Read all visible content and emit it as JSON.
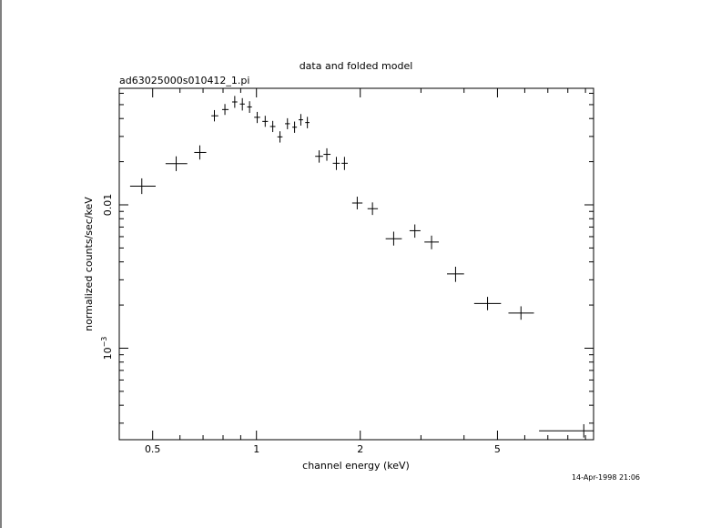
{
  "chart_data": {
    "type": "scatter",
    "title": "data and folded model",
    "subtitle": "ad63025000s010412_1.pi",
    "xlabel": "channel energy (keV)",
    "ylabel": "normalized counts/sec/keV",
    "timestamp": "14-Apr-1998 21:06",
    "x_scale": "log",
    "y_scale": "log",
    "xlim": [
      0.4,
      9.5
    ],
    "ylim": [
      0.00023,
      0.065
    ],
    "x_ticks": [
      {
        "value": 0.5,
        "label": "0.5"
      },
      {
        "value": 1,
        "label": "1"
      },
      {
        "value": 2,
        "label": "2"
      },
      {
        "value": 5,
        "label": "5"
      }
    ],
    "y_ticks": [
      {
        "value": 0.01,
        "label": "0.01"
      },
      {
        "value": 0.001,
        "label": "10",
        "exponent": "−3"
      }
    ],
    "grid": false,
    "series": [
      {
        "marker": "crosshair",
        "points": [
          {
            "x": 0.465,
            "xlo": 0.43,
            "xhi": 0.51,
            "y": 0.0135,
            "ylo": 0.0119,
            "yhi": 0.0153
          },
          {
            "x": 0.585,
            "xlo": 0.545,
            "xhi": 0.63,
            "y": 0.0194,
            "ylo": 0.0172,
            "yhi": 0.0218
          },
          {
            "x": 0.685,
            "xlo": 0.66,
            "xhi": 0.715,
            "y": 0.0232,
            "ylo": 0.0207,
            "yhi": 0.026
          },
          {
            "x": 0.755,
            "xlo": 0.74,
            "xhi": 0.775,
            "y": 0.0418,
            "ylo": 0.0382,
            "yhi": 0.0458
          },
          {
            "x": 0.81,
            "xlo": 0.795,
            "xhi": 0.83,
            "y": 0.0462,
            "ylo": 0.0424,
            "yhi": 0.0505
          },
          {
            "x": 0.865,
            "xlo": 0.85,
            "xhi": 0.88,
            "y": 0.0522,
            "ylo": 0.0475,
            "yhi": 0.0575
          },
          {
            "x": 0.91,
            "xlo": 0.895,
            "xhi": 0.925,
            "y": 0.0505,
            "ylo": 0.0455,
            "yhi": 0.0555
          },
          {
            "x": 0.955,
            "xlo": 0.94,
            "xhi": 0.97,
            "y": 0.0482,
            "ylo": 0.0438,
            "yhi": 0.0528
          },
          {
            "x": 1.005,
            "xlo": 0.985,
            "xhi": 1.025,
            "y": 0.0408,
            "ylo": 0.0372,
            "yhi": 0.0445
          },
          {
            "x": 1.06,
            "xlo": 1.04,
            "xhi": 1.08,
            "y": 0.0382,
            "ylo": 0.035,
            "yhi": 0.0418
          },
          {
            "x": 1.115,
            "xlo": 1.095,
            "xhi": 1.135,
            "y": 0.0352,
            "ylo": 0.0322,
            "yhi": 0.0385
          },
          {
            "x": 1.17,
            "xlo": 1.15,
            "xhi": 1.19,
            "y": 0.0298,
            "ylo": 0.0272,
            "yhi": 0.0326
          },
          {
            "x": 1.23,
            "xlo": 1.21,
            "xhi": 1.25,
            "y": 0.0368,
            "ylo": 0.0337,
            "yhi": 0.0402
          },
          {
            "x": 1.29,
            "xlo": 1.27,
            "xhi": 1.31,
            "y": 0.0348,
            "ylo": 0.0318,
            "yhi": 0.0381
          },
          {
            "x": 1.345,
            "xlo": 1.325,
            "xhi": 1.365,
            "y": 0.0392,
            "ylo": 0.0357,
            "yhi": 0.043
          },
          {
            "x": 1.405,
            "xlo": 1.385,
            "xhi": 1.425,
            "y": 0.0375,
            "ylo": 0.0342,
            "yhi": 0.0411
          },
          {
            "x": 1.52,
            "xlo": 1.48,
            "xhi": 1.56,
            "y": 0.0218,
            "ylo": 0.0197,
            "yhi": 0.024
          },
          {
            "x": 1.6,
            "xlo": 1.565,
            "xhi": 1.64,
            "y": 0.0225,
            "ylo": 0.0203,
            "yhi": 0.0248
          },
          {
            "x": 1.705,
            "xlo": 1.665,
            "xhi": 1.745,
            "y": 0.0195,
            "ylo": 0.0175,
            "yhi": 0.0216
          },
          {
            "x": 1.8,
            "xlo": 1.765,
            "xhi": 1.84,
            "y": 0.0195,
            "ylo": 0.0175,
            "yhi": 0.0216
          },
          {
            "x": 1.96,
            "xlo": 1.895,
            "xhi": 2.03,
            "y": 0.0103,
            "ylo": 0.0093,
            "yhi": 0.0114
          },
          {
            "x": 2.17,
            "xlo": 2.1,
            "xhi": 2.25,
            "y": 0.0094,
            "ylo": 0.0085,
            "yhi": 0.0104
          },
          {
            "x": 2.5,
            "xlo": 2.37,
            "xhi": 2.64,
            "y": 0.0058,
            "ylo": 0.0052,
            "yhi": 0.0065
          },
          {
            "x": 2.88,
            "xlo": 2.78,
            "xhi": 2.99,
            "y": 0.0066,
            "ylo": 0.0059,
            "yhi": 0.0073
          },
          {
            "x": 3.22,
            "xlo": 3.07,
            "xhi": 3.38,
            "y": 0.0055,
            "ylo": 0.0049,
            "yhi": 0.0061
          },
          {
            "x": 3.78,
            "xlo": 3.57,
            "xhi": 4.0,
            "y": 0.0033,
            "ylo": 0.0029,
            "yhi": 0.0037
          },
          {
            "x": 4.68,
            "xlo": 4.28,
            "xhi": 5.12,
            "y": 0.00205,
            "ylo": 0.00184,
            "yhi": 0.00228
          },
          {
            "x": 5.85,
            "xlo": 5.38,
            "xhi": 6.38,
            "y": 0.00176,
            "ylo": 0.00158,
            "yhi": 0.00196
          },
          {
            "x": 8.9,
            "xlo": 6.6,
            "xhi": 9.5,
            "y": 0.000265,
            "ylo": 0.000238,
            "yhi": 0.000295
          }
        ]
      }
    ]
  }
}
